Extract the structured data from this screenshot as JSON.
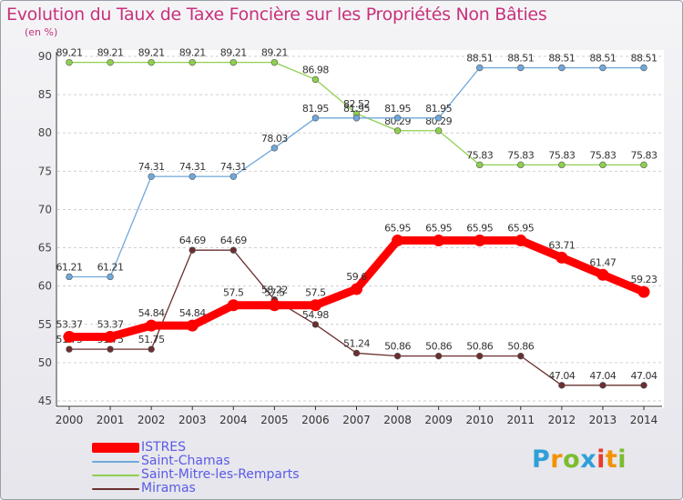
{
  "title": "Evolution du Taux de Taxe Foncière sur les Propriétés Non Bâties",
  "subtitle": "(en %)",
  "logo": {
    "letters": [
      "P",
      "r",
      "o",
      "x",
      "i",
      "t",
      "i"
    ],
    "colors": [
      "#2f9fd8",
      "#f39200",
      "#7bbd2e",
      "#2f9fd8",
      "#e63d2e",
      "#f39200",
      "#7bbd2e"
    ]
  },
  "chart_data": {
    "type": "line",
    "x": [
      "2000",
      "2001",
      "2002",
      "2003",
      "2004",
      "2005",
      "2006",
      "2007",
      "2008",
      "2009",
      "2010",
      "2011",
      "2012",
      "2013",
      "2014"
    ],
    "ylim": [
      45,
      90
    ],
    "yticks": [
      45,
      50,
      55,
      60,
      65,
      70,
      75,
      80,
      85,
      90
    ],
    "grid": "horizontal dashed",
    "legend_position": "bottom-left",
    "series": [
      {
        "name": "Saint-Mitre-les-Remparts",
        "color": "#8ed04e",
        "values": [
          89.21,
          89.21,
          89.21,
          89.21,
          89.21,
          89.21,
          86.98,
          82.52,
          80.29,
          80.29,
          75.83,
          75.83,
          75.83,
          75.83,
          75.83
        ],
        "labels": [
          "89.21",
          "89.21",
          "89.21",
          "89.21",
          "89.21",
          "89.21",
          "86.98",
          "82.52",
          "80.29",
          "80.29",
          "75.83",
          "75.83",
          "75.83",
          "75.83",
          "75.83"
        ]
      },
      {
        "name": "Saint-Chamas",
        "color": "#6fa8dc",
        "values": [
          61.21,
          61.21,
          74.31,
          74.31,
          74.31,
          78.03,
          81.95,
          81.95,
          81.95,
          81.95,
          88.51,
          88.51,
          88.51,
          88.51,
          88.51
        ],
        "labels": [
          "61.21",
          "61.21",
          "74.31",
          "74.31",
          "74.31",
          "78.03",
          "81.95",
          "81.95",
          "81.95",
          "81.95",
          "88.51",
          "88.51",
          "88.51",
          "88.51",
          "88.51"
        ]
      },
      {
        "name": "Miramas",
        "color": "#6b2f2f",
        "values": [
          51.75,
          51.75,
          51.75,
          64.69,
          64.69,
          58.22,
          54.98,
          51.24,
          50.86,
          50.86,
          50.86,
          50.86,
          47.04,
          47.04,
          47.04
        ],
        "labels": [
          "51.75",
          "51.75",
          "51.75",
          "64.69",
          "64.69",
          "58.22",
          "54.98",
          "51.24",
          "50.86",
          "50.86",
          "50.86",
          "50.86",
          "47.04",
          "47.04",
          "47.04"
        ]
      },
      {
        "name": "ISTRES",
        "color": "#ff0000",
        "values": [
          53.37,
          53.37,
          54.84,
          54.84,
          57.5,
          57.5,
          57.5,
          59.6,
          65.95,
          65.95,
          65.95,
          65.95,
          63.71,
          61.47,
          59.23
        ],
        "labels": [
          "53.37",
          "53.37",
          "54.84",
          "54.84",
          "57.5",
          "57.5",
          "57.5",
          "59.6",
          "65.95",
          "65.95",
          "65.95",
          "65.95",
          "63.71",
          "61.47",
          "59.23"
        ]
      }
    ],
    "legend": [
      "ISTRES",
      "Saint-Chamas",
      "Saint-Mitre-les-Remparts",
      "Miramas"
    ]
  }
}
